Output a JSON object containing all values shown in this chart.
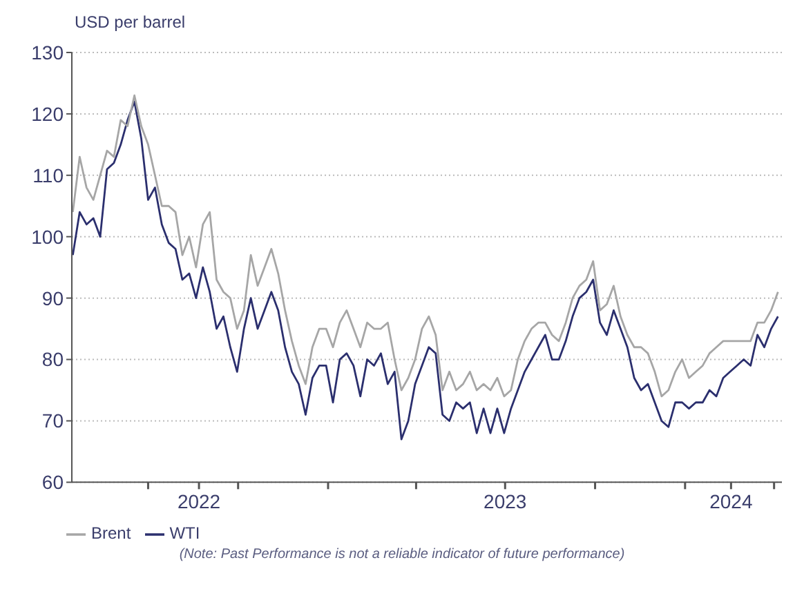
{
  "chart_data": {
    "type": "line",
    "ylabel": "USD per barrel",
    "annotations": [
      "(Note: Past Performance is not a reliable indicator of future performance)"
    ],
    "x": [
      "2022-04-15",
      "2022-04-22",
      "2022-04-29",
      "2022-05-06",
      "2022-05-13",
      "2022-05-20",
      "2022-05-27",
      "2022-06-03",
      "2022-06-10",
      "2022-06-17",
      "2022-06-24",
      "2022-07-01",
      "2022-07-08",
      "2022-07-15",
      "2022-07-22",
      "2022-07-29",
      "2022-08-05",
      "2022-08-12",
      "2022-08-19",
      "2022-08-26",
      "2022-09-02",
      "2022-09-09",
      "2022-09-16",
      "2022-09-23",
      "2022-09-30",
      "2022-10-07",
      "2022-10-14",
      "2022-10-21",
      "2022-10-28",
      "2022-11-04",
      "2022-11-11",
      "2022-11-18",
      "2022-11-25",
      "2022-12-02",
      "2022-12-09",
      "2022-12-16",
      "2022-12-23",
      "2022-12-30",
      "2023-01-06",
      "2023-01-13",
      "2023-01-20",
      "2023-01-27",
      "2023-02-03",
      "2023-02-10",
      "2023-02-17",
      "2023-02-24",
      "2023-03-03",
      "2023-03-10",
      "2023-03-17",
      "2023-03-24",
      "2023-03-31",
      "2023-04-07",
      "2023-04-14",
      "2023-04-21",
      "2023-04-28",
      "2023-05-05",
      "2023-05-12",
      "2023-05-19",
      "2023-05-26",
      "2023-06-02",
      "2023-06-09",
      "2023-06-16",
      "2023-06-23",
      "2023-06-30",
      "2023-07-07",
      "2023-07-14",
      "2023-07-21",
      "2023-07-28",
      "2023-08-04",
      "2023-08-11",
      "2023-08-18",
      "2023-08-25",
      "2023-09-01",
      "2023-09-08",
      "2023-09-15",
      "2023-09-22",
      "2023-09-29",
      "2023-10-06",
      "2023-10-13",
      "2023-10-20",
      "2023-10-27",
      "2023-11-03",
      "2023-11-10",
      "2023-11-17",
      "2023-11-24",
      "2023-12-01",
      "2023-12-08",
      "2023-12-15",
      "2023-12-22",
      "2023-12-29",
      "2024-01-05",
      "2024-01-12",
      "2024-01-19",
      "2024-01-26",
      "2024-02-02",
      "2024-02-09",
      "2024-02-16",
      "2024-02-23",
      "2024-03-01",
      "2024-03-08",
      "2024-03-15",
      "2024-03-22",
      "2024-03-29",
      "2024-04-05"
    ],
    "series": [
      {
        "name": "WTI",
        "color": "#2b2f6e",
        "values": [
          97,
          104,
          102,
          103,
          100,
          111,
          112,
          115,
          119,
          122,
          116,
          106,
          108,
          102,
          99,
          98,
          93,
          94,
          90,
          95,
          91,
          85,
          87,
          82,
          78,
          85,
          90,
          85,
          88,
          91,
          88,
          82,
          78,
          76,
          71,
          77,
          79,
          79,
          73,
          80,
          81,
          79,
          74,
          80,
          79,
          81,
          76,
          78,
          67,
          70,
          76,
          79,
          82,
          81,
          71,
          70,
          73,
          72,
          73,
          68,
          72,
          68,
          72,
          68,
          72,
          75,
          78,
          80,
          82,
          84,
          80,
          80,
          83,
          87,
          90,
          91,
          93,
          86,
          84,
          88,
          85,
          82,
          77,
          75,
          76,
          73,
          70,
          69,
          73,
          73,
          72,
          73,
          73,
          75,
          74,
          77,
          78,
          79,
          80,
          79,
          84,
          82,
          85,
          87
        ]
      },
      {
        "name": "Brent",
        "color": "#a6a6a6",
        "values": [
          104,
          113,
          108,
          106,
          110,
          114,
          113,
          119,
          118,
          123,
          118,
          115,
          110,
          105,
          105,
          104,
          97,
          100,
          95,
          102,
          104,
          93,
          91,
          90,
          85,
          88,
          97,
          92,
          95,
          98,
          94,
          88,
          83,
          79,
          76,
          82,
          85,
          85,
          82,
          86,
          88,
          85,
          82,
          86,
          85,
          85,
          86,
          80,
          75,
          77,
          80,
          85,
          87,
          84,
          75,
          78,
          75,
          76,
          78,
          75,
          76,
          75,
          77,
          74,
          75,
          80,
          83,
          85,
          86,
          86,
          84,
          83,
          86,
          90,
          92,
          93,
          96,
          88,
          89,
          92,
          87,
          84,
          82,
          82,
          81,
          78,
          74,
          75,
          78,
          80,
          77,
          78,
          79,
          81,
          82,
          83,
          83,
          83,
          83,
          83,
          86,
          86,
          88,
          91
        ]
      }
    ],
    "xlim": [
      "2022-04-14",
      "2024-04-09"
    ],
    "xticks": [
      {
        "value": "2022-07-01",
        "label": null
      },
      {
        "value": "2022-08-22",
        "label": "2022"
      },
      {
        "value": "2022-10-01",
        "label": null
      },
      {
        "value": "2023-01-01",
        "label": null
      },
      {
        "value": "2023-04-01",
        "label": null
      },
      {
        "value": "2023-07-01",
        "label": "2023"
      },
      {
        "value": "2023-10-01",
        "label": null
      },
      {
        "value": "2024-01-01",
        "label": null
      },
      {
        "value": "2024-02-17",
        "label": "2024"
      },
      {
        "value": "2024-04-01",
        "label": null
      }
    ],
    "ylim": [
      60,
      130
    ],
    "yticks": [
      60,
      70,
      80,
      90,
      100,
      110,
      120,
      130
    ],
    "grid": "y",
    "legend": "bottom left",
    "marker": "none",
    "line_style": "solid"
  }
}
